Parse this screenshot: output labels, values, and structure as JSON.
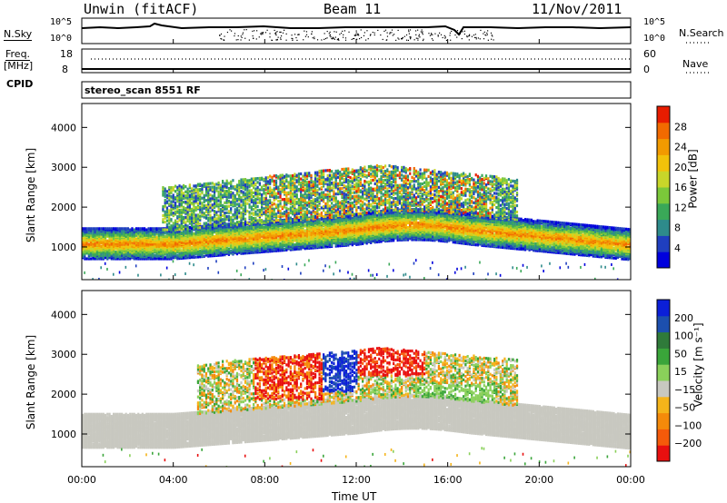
{
  "header": {
    "site": "Unwin (fitACF)",
    "beam": "Beam 11",
    "date": "11/Nov/2011"
  },
  "noise_panel": {
    "left_label": "N.Sky",
    "right_label": "N.Search",
    "left_ticks": [
      "10^5",
      "10^0"
    ],
    "right_ticks": [
      "10^5",
      "10^0"
    ]
  },
  "freq_panel": {
    "left_label_1": "Freq.",
    "left_label_2": "[MHz]",
    "left_ticks": [
      "18",
      "8"
    ],
    "right_label": "Nave",
    "right_ticks": [
      "60",
      "0"
    ]
  },
  "cpid": {
    "label": "CPID",
    "value": "stereo_scan 8551 RF"
  },
  "chart_data": [
    {
      "type": "heatmap",
      "parameter": "power",
      "ylabel": "Slant Range [km]",
      "ylim": [
        180,
        4600
      ],
      "y_ticks": [
        1000,
        2000,
        3000,
        4000
      ],
      "x_ticks": [
        "00:00",
        "04:00",
        "08:00",
        "12:00",
        "16:00",
        "20:00",
        "00:00"
      ],
      "colorbar": {
        "label": "Power [dB]",
        "ticks": [
          4,
          8,
          12,
          16,
          20,
          24,
          28
        ],
        "range": [
          0,
          30
        ],
        "colors": [
          "#0000dd",
          "#1f3fbf",
          "#2e8b8b",
          "#3aa858",
          "#7bc83a",
          "#c8d62a",
          "#f2c20a",
          "#f29a00",
          "#f26a00",
          "#e81c00"
        ]
      },
      "features": [
        {
          "name": "main band",
          "hours": [
            0,
            24
          ],
          "range_km": [
            800,
            1500
          ],
          "peak_db": 22
        },
        {
          "name": "upper scatter",
          "hours": [
            4,
            19
          ],
          "range_km": [
            1700,
            3200
          ],
          "peak_db": 28
        }
      ]
    },
    {
      "type": "heatmap",
      "parameter": "velocity",
      "ylabel": "Slant Range [km]",
      "ylim": [
        180,
        4600
      ],
      "y_ticks": [
        1000,
        2000,
        3000,
        4000
      ],
      "x_ticks": [
        "00:00",
        "04:00",
        "08:00",
        "12:00",
        "16:00",
        "20:00",
        "00:00"
      ],
      "xlabel": "Time UT",
      "colorbar": {
        "label": "Velocity [m s⁻¹]",
        "ticks": [
          "200",
          "100",
          "50",
          "15",
          "−15",
          "−50",
          "−100",
          "−200"
        ],
        "colors": [
          "#0b1fd8",
          "#1c4fae",
          "#2f7a3a",
          "#3aa53a",
          "#8ad05a",
          "#c8c8c0",
          "#f5b41a",
          "#f58a0a",
          "#f55a0a",
          "#e80f0f"
        ]
      },
      "features": [
        {
          "name": "ground scatter",
          "hours": [
            0,
            24
          ],
          "range_km": [
            700,
            1600
          ],
          "velocity": 0
        },
        {
          "name": "ionospheric scatter",
          "hours": [
            5,
            19
          ],
          "range_km": [
            1600,
            3200
          ],
          "velocity": [
            -200,
            200
          ]
        }
      ]
    }
  ]
}
